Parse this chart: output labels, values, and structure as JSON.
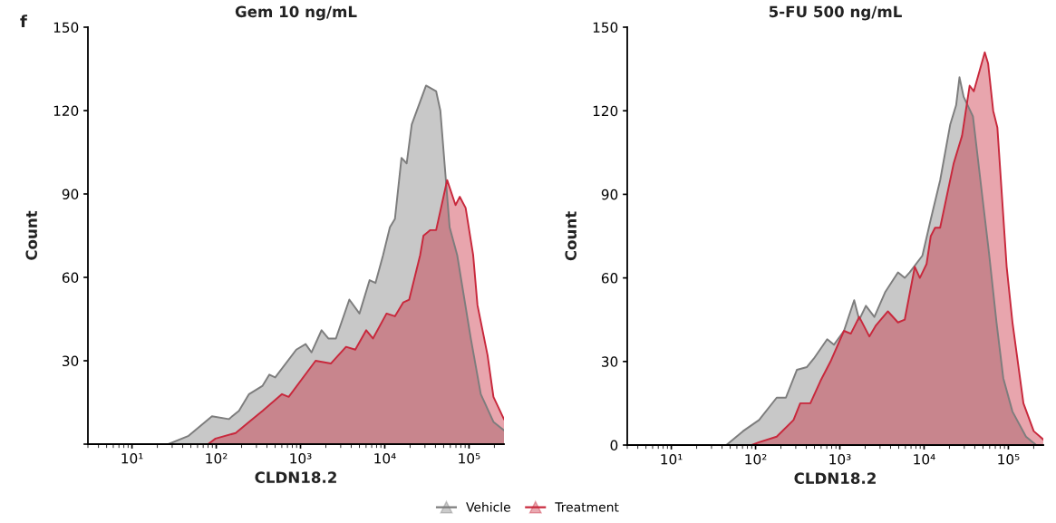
{
  "chart_data": [
    {
      "type": "area",
      "title": "Gem 10 ng/mL",
      "xlabel": "CLDN18.2",
      "ylabel": "Count",
      "annotations": [
        "f"
      ],
      "log": "x",
      "legend": "bottom",
      "grid": false,
      "xlim": [
        3,
        260000
      ],
      "xticks": [
        {
          "value": 10,
          "label": "10¹"
        },
        {
          "value": 100,
          "label": "10²"
        },
        {
          "value": 1000,
          "label": "10³"
        },
        {
          "value": 10000,
          "label": "10⁴"
        },
        {
          "value": 100000,
          "label": "10⁵"
        }
      ],
      "ylim": [
        0,
        150
      ],
      "yticks": [
        {
          "value": 0,
          "label": null
        },
        30,
        60,
        90,
        120,
        150
      ],
      "series": [
        {
          "name": "Vehicle",
          "color": "#7d7d7d",
          "x": [
            3,
            27,
            47,
            89,
            141,
            186,
            245,
            355,
            427,
            501,
            891,
            1150,
            1350,
            1780,
            2140,
            2630,
            3800,
            5010,
            6610,
            7760,
            9550,
            11500,
            13200,
            15800,
            18200,
            20900,
            30900,
            40700,
            45700,
            52500,
            58900,
            72400,
            105000,
            138000,
            195000,
            260000
          ],
          "values": [
            0,
            0,
            3,
            10,
            9,
            12,
            18,
            21,
            25,
            24,
            34,
            36,
            33,
            41,
            38,
            38,
            52,
            47,
            59,
            58,
            68,
            78,
            81,
            103,
            101,
            115,
            129,
            127,
            120,
            97,
            78,
            68,
            38,
            18,
            8,
            5
          ]
        },
        {
          "name": "Treatment",
          "color": "#c8283c",
          "x": [
            3,
            80,
            98,
            170,
            245,
            355,
            603,
            724,
            1510,
            2290,
            3470,
            4470,
            6030,
            7240,
            10500,
            13200,
            16600,
            19500,
            26300,
            28800,
            34700,
            40700,
            55000,
            69200,
            77600,
            91200,
            112000,
            126000,
            166000,
            195000,
            260000
          ],
          "values": [
            0,
            0,
            2,
            4,
            8,
            12,
            18,
            17,
            30,
            29,
            35,
            34,
            41,
            38,
            47,
            46,
            51,
            52,
            68,
            75,
            77,
            77,
            95,
            86,
            89,
            85,
            68,
            50,
            32,
            17,
            9
          ]
        }
      ]
    },
    {
      "type": "area",
      "title": "5-FU 500 ng/mL",
      "xlabel": "CLDN18.2",
      "ylabel": "Count",
      "log": "x",
      "grid": false,
      "xlim": [
        3,
        260000
      ],
      "xticks": [
        {
          "value": 10,
          "label": "10¹"
        },
        {
          "value": 100,
          "label": "10²"
        },
        {
          "value": 1000,
          "label": "10³"
        },
        {
          "value": 10000,
          "label": "10⁴"
        },
        {
          "value": 100000,
          "label": "10⁵"
        }
      ],
      "ylim": [
        0,
        150
      ],
      "yticks": [
        0,
        30,
        60,
        90,
        120,
        150
      ],
      "series": [
        {
          "color": "#7d7d7d",
          "x": [
            3,
            45,
            71,
            110,
            178,
            229,
            309,
            407,
            490,
            708,
            851,
            1120,
            1480,
            1700,
            2040,
            2570,
            3470,
            4900,
            5890,
            6760,
            9550,
            12000,
            15500,
            20400,
            24000,
            26300,
            29500,
            38000,
            47900,
            58900,
            72400,
            87100,
            112000,
            162000,
            214000,
            260000
          ],
          "values": [
            0,
            0,
            5,
            9,
            17,
            17,
            27,
            28,
            31,
            38,
            36,
            41,
            52,
            45,
            50,
            46,
            55,
            62,
            60,
            62,
            68,
            81,
            95,
            115,
            122,
            132,
            125,
            118,
            92,
            69,
            44,
            24,
            12,
            3,
            0,
            0
          ]
        },
        {
          "color": "#c8283c",
          "x": [
            3,
            90,
            110,
            178,
            282,
            339,
            447,
            589,
            776,
            1120,
            1350,
            1700,
            2240,
            2690,
            3720,
            4900,
            5890,
            7760,
            8910,
            10700,
            12000,
            13500,
            15500,
            22400,
            28200,
            34700,
            38900,
            52500,
            57500,
            66100,
            74100,
            95500,
            112000,
            151000,
            200000,
            260000
          ],
          "values": [
            0,
            0,
            1,
            3,
            9,
            15,
            15,
            23,
            30,
            41,
            40,
            46,
            39,
            43,
            48,
            44,
            45,
            64,
            60,
            65,
            75,
            78,
            78,
            101,
            111,
            129,
            127,
            141,
            137,
            120,
            114,
            64,
            44,
            15,
            5,
            2
          ]
        }
      ]
    }
  ]
}
